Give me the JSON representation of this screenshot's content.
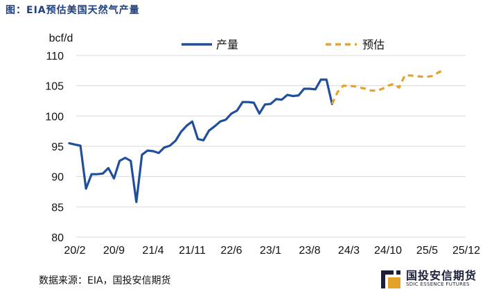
{
  "title": "图：EIA预估美国天然气产量",
  "source": "数据来源：EIA，国投安信期货",
  "logo": {
    "cn": "国投安信期货",
    "en": "SDIC ESSENCE FUTURES"
  },
  "colors": {
    "production": "#1f4e9c",
    "forecast": "#e3a32b",
    "grid": "#d9d9d9",
    "title": "#1f3f7f"
  },
  "chart_data": {
    "type": "line",
    "ylabel": "bcf/d",
    "ylim": [
      80,
      110
    ],
    "yticks": [
      80,
      85,
      90,
      95,
      100,
      105,
      110
    ],
    "xticks": [
      "20/2",
      "20/9",
      "21/4",
      "21/11",
      "22/6",
      "23/1",
      "23/8",
      "24/3",
      "24/10",
      "25/5",
      "25/12"
    ],
    "grid": "horizontal",
    "legend": "top",
    "series": [
      {
        "name": "产量",
        "start": "2020-01",
        "values": [
          95.5,
          95.3,
          95.1,
          88.0,
          90.4,
          90.4,
          90.5,
          91.4,
          89.7,
          92.6,
          93.1,
          92.6,
          85.8,
          93.6,
          94.3,
          94.2,
          93.9,
          94.8,
          95.1,
          95.9,
          97.4,
          98.4,
          99.1,
          96.2,
          96.0,
          97.6,
          98.3,
          99.1,
          99.4,
          100.4,
          100.9,
          102.3,
          102.3,
          102.2,
          100.4,
          101.9,
          102.0,
          102.8,
          102.7,
          103.5,
          103.3,
          103.4,
          104.5,
          104.5,
          104.4,
          106.0,
          106.0,
          102.0
        ]
      },
      {
        "name": "预估",
        "start": "2023-12",
        "values": [
          102.0,
          104.0,
          105.0,
          105.0,
          104.9,
          104.7,
          104.5,
          104.2,
          104.2,
          104.5,
          105.0,
          105.3,
          104.7,
          106.7,
          106.7,
          106.6,
          106.5,
          106.5,
          106.6,
          107.2,
          107.6
        ]
      }
    ]
  }
}
